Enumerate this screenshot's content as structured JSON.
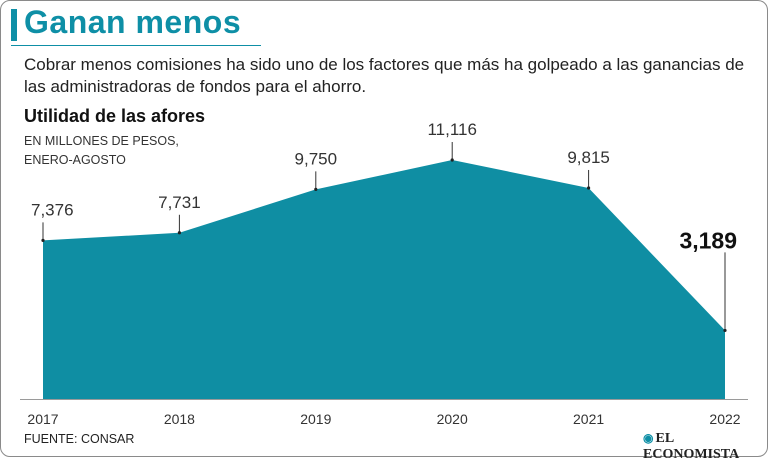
{
  "headline": "Ganan menos",
  "deck": "Cobrar menos comisiones ha sido uno de los factores que más ha golpeado a las ganancias de las administradoras de fondos para el ahorro.",
  "source": "FUENTE: CONSAR",
  "publisher": "EL ECONOMISTA",
  "colors": {
    "accent": "#0e8fa6",
    "area": "#0f8ea3"
  },
  "chart_data": {
    "type": "area",
    "title": "Utilidad de las afores",
    "subtitle_lines": [
      "EN MILLONES DE PESOS,",
      "ENERO-AGOSTO"
    ],
    "x": [
      "2017",
      "2018",
      "2019",
      "2020",
      "2021",
      "2022"
    ],
    "values": [
      7376,
      7731,
      9750,
      11116,
      9815,
      3189
    ],
    "labels": [
      "7,376",
      "7,731",
      "9,750",
      "11,116",
      "9,815",
      "3,189"
    ],
    "highlight_index": 5,
    "xlabel": "",
    "ylabel": "",
    "ylim": [
      0,
      11116
    ],
    "grid": false
  }
}
